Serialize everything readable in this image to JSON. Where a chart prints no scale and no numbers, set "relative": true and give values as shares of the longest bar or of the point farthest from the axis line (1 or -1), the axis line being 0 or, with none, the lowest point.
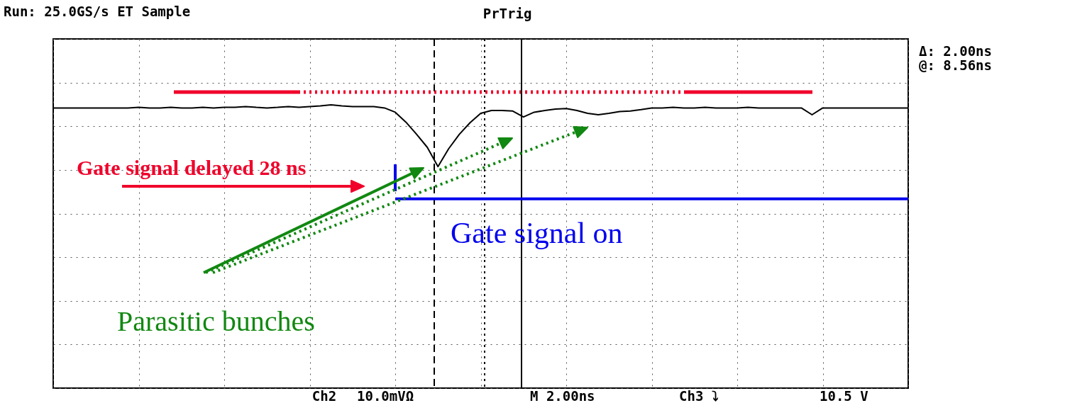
{
  "chart_data": {
    "type": "line",
    "title": "Run: 25.0GS/s ET Sample",
    "relative": true,
    "categories": [
      null,
      null,
      null,
      null,
      null,
      null,
      null,
      null,
      null,
      null,
      null,
      null,
      null,
      null,
      null,
      null,
      null,
      null,
      null,
      null,
      null,
      null,
      null,
      null,
      null,
      null,
      null,
      null,
      null,
      null,
      null,
      null,
      null,
      null,
      null,
      null,
      null,
      null,
      null,
      null,
      null,
      null,
      null,
      null,
      null,
      null,
      null,
      null,
      null,
      null,
      null,
      null,
      null,
      null,
      null,
      null,
      null,
      null,
      null,
      null,
      null,
      null,
      null,
      null,
      null,
      null,
      null,
      null,
      null,
      null,
      null,
      null,
      null,
      null,
      null,
      null,
      null,
      null,
      null,
      null,
      null
    ],
    "tick_labels": false,
    "grid": true,
    "series": [
      {
        "color": "#000000",
        "line_style": "solid",
        "values": [
          0.989,
          0.989,
          0.989,
          0.989,
          0.989,
          0.989,
          0.989,
          0.989,
          0.991,
          0.989,
          0.989,
          0.991,
          0.989,
          0.989,
          0.991,
          0.989,
          0.991,
          0.991,
          0.994,
          0.991,
          0.989,
          0.991,
          0.994,
          0.991,
          0.994,
          0.996,
          1.0,
          0.996,
          0.994,
          0.994,
          0.994,
          0.989,
          0.974,
          0.939,
          0.896,
          0.85,
          0.782,
          0.845,
          0.896,
          0.937,
          0.97,
          0.98,
          0.98,
          0.978,
          0.957,
          0.974,
          0.98,
          0.985,
          0.987,
          0.98,
          0.97,
          0.965,
          0.97,
          0.976,
          0.978,
          0.983,
          0.989,
          0.989,
          0.991,
          0.989,
          0.989,
          0.991,
          0.989,
          0.989,
          0.989,
          0.991,
          0.989,
          0.989,
          0.989,
          0.989,
          0.989,
          0.965,
          0.989,
          0.989,
          0.989,
          0.989,
          0.989,
          0.989,
          0.989,
          0.989,
          0.989
        ]
      }
    ],
    "ref_lines": [
      {
        "axis": "y",
        "value": 0.668,
        "color": "#0000ee",
        "line_style": "solid"
      }
    ],
    "annotations": [
      "Gate signal delayed 28 ns",
      "Gate signal on",
      "Parasitic bunches",
      "PrTrig",
      "Δ: 2.00ns",
      "@: 8.56ns",
      "Ch2",
      "10.0mVΩ",
      "M 2.00ns",
      "Ch3 ⤵",
      "10.5 V"
    ]
  }
}
